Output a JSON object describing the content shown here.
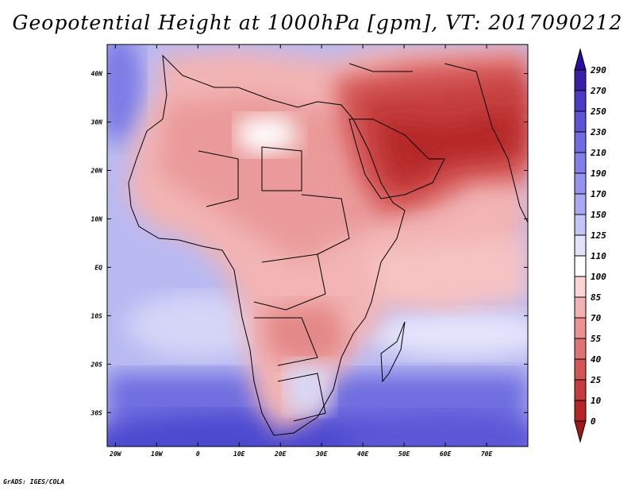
{
  "title": "Geopotential Height at 1000hPa [gpm], VT: 2017090212",
  "credit": "GrADS: IGES/COLA",
  "map": {
    "lon_range": [
      -22,
      80
    ],
    "lat_range": [
      -37,
      46
    ],
    "lat_ticks": [
      "40N",
      "30N",
      "20N",
      "10N",
      "EQ",
      "10S",
      "20S",
      "30S"
    ],
    "lon_ticks": [
      "20W",
      "10W",
      "0",
      "10E",
      "20E",
      "30E",
      "40E",
      "50E",
      "60E",
      "70E"
    ],
    "field": "Geopotential Height at 1000hPa",
    "units": "gpm"
  },
  "colorbar": {
    "levels": [
      "290",
      "270",
      "250",
      "230",
      "210",
      "190",
      "170",
      "150",
      "125",
      "110",
      "100",
      "85",
      "70",
      "55",
      "40",
      "25",
      "10",
      "0"
    ],
    "colors": [
      "#3a1fa6",
      "#4b3cc3",
      "#5c55d3",
      "#6e6cdf",
      "#8080e8",
      "#9494ee",
      "#a8a8f3",
      "#c4c4f7",
      "#e2e2fb",
      "#ffffff",
      "#fbd4d4",
      "#f3b2b2",
      "#ea9191",
      "#de7373",
      "#d25656",
      "#c43c3c",
      "#b52626"
    ],
    "top_arrow_color": "#2a0f9a",
    "bottom_arrow_color": "#a01818"
  }
}
